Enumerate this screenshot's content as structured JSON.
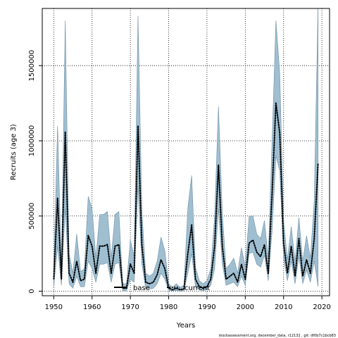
{
  "chart_data": {
    "type": "line",
    "xlabel": "Years",
    "ylabel": "Recruits (age 3)",
    "xlim": [
      1947,
      2022
    ],
    "ylim": [
      -30000,
      1880000
    ],
    "xticks": [
      1950,
      1960,
      1970,
      1980,
      1990,
      2000,
      2010,
      2020
    ],
    "xtick_labels": [
      "1950",
      "1960",
      "1970",
      "1980",
      "1990",
      "2000",
      "2010",
      "2020"
    ],
    "yticks": [
      0,
      500000,
      1000000,
      1500000
    ],
    "ytick_labels": [
      "0",
      "500000",
      "1000000",
      "1500000"
    ],
    "grid": true,
    "legend_position": "bottom-center",
    "legend": [
      {
        "label": "base",
        "style": "solid",
        "color": "#000000"
      },
      {
        "label": "current",
        "style": "dotted",
        "color": "#000000"
      }
    ],
    "band_color": "#9fbfd1",
    "band_edge_color": "#6f8fa5",
    "x": [
      1950,
      1951,
      1952,
      1953,
      1954,
      1955,
      1956,
      1957,
      1958,
      1959,
      1960,
      1961,
      1962,
      1963,
      1964,
      1965,
      1966,
      1967,
      1968,
      1969,
      1970,
      1971,
      1972,
      1973,
      1974,
      1975,
      1976,
      1977,
      1978,
      1979,
      1980,
      1981,
      1982,
      1983,
      1984,
      1985,
      1986,
      1987,
      1988,
      1989,
      1990,
      1991,
      1992,
      1993,
      1994,
      1995,
      1996,
      1997,
      1998,
      1999,
      2000,
      2001,
      2002,
      2003,
      2004,
      2005,
      2006,
      2007,
      2008,
      2009,
      2010,
      2011,
      2012,
      2013,
      2014,
      2015,
      2016,
      2017,
      2018,
      2019
    ],
    "series": [
      {
        "name": "base",
        "values": [
          80000,
          620000,
          80000,
          1060000,
          120000,
          60000,
          200000,
          70000,
          80000,
          370000,
          300000,
          120000,
          300000,
          300000,
          310000,
          120000,
          300000,
          310000,
          20000,
          20000,
          180000,
          120000,
          1100000,
          310000,
          60000,
          50000,
          60000,
          110000,
          210000,
          150000,
          20000,
          10000,
          20000,
          10000,
          15000,
          250000,
          440000,
          80000,
          30000,
          20000,
          30000,
          80000,
          300000,
          840000,
          300000,
          80000,
          100000,
          120000,
          60000,
          180000,
          80000,
          320000,
          340000,
          260000,
          230000,
          310000,
          120000,
          650000,
          1250000,
          1050000,
          320000,
          120000,
          300000,
          100000,
          350000,
          100000,
          210000,
          120000,
          350000,
          850000
        ]
      },
      {
        "name": "current",
        "values": [
          80000,
          620000,
          80000,
          1060000,
          120000,
          60000,
          200000,
          70000,
          80000,
          370000,
          300000,
          120000,
          300000,
          300000,
          310000,
          120000,
          300000,
          310000,
          20000,
          20000,
          180000,
          120000,
          1100000,
          310000,
          60000,
          50000,
          60000,
          110000,
          210000,
          150000,
          20000,
          10000,
          20000,
          10000,
          15000,
          250000,
          440000,
          80000,
          30000,
          20000,
          30000,
          80000,
          300000,
          840000,
          300000,
          80000,
          100000,
          120000,
          60000,
          180000,
          80000,
          320000,
          340000,
          260000,
          230000,
          310000,
          120000,
          650000,
          1250000,
          1050000,
          320000,
          120000,
          300000,
          100000,
          350000,
          100000,
          210000,
          120000,
          350000,
          850000
        ]
      }
    ],
    "band_lower": [
      30000,
      300000,
      40000,
      550000,
      50000,
      20000,
      100000,
      30000,
      30000,
      200000,
      150000,
      60000,
      180000,
      180000,
      190000,
      60000,
      180000,
      190000,
      5000,
      5000,
      80000,
      60000,
      700000,
      180000,
      20000,
      15000,
      20000,
      50000,
      120000,
      80000,
      5000,
      2000,
      5000,
      2000,
      3000,
      120000,
      250000,
      30000,
      10000,
      5000,
      10000,
      40000,
      150000,
      550000,
      180000,
      40000,
      50000,
      60000,
      30000,
      100000,
      40000,
      250000,
      260000,
      180000,
      160000,
      240000,
      70000,
      400000,
      900000,
      800000,
      220000,
      70000,
      200000,
      50000,
      230000,
      50000,
      140000,
      60000,
      200000,
      30000
    ],
    "band_upper": [
      150000,
      1100000,
      150000,
      1800000,
      250000,
      120000,
      380000,
      130000,
      150000,
      630000,
      550000,
      220000,
      510000,
      510000,
      530000,
      220000,
      510000,
      530000,
      50000,
      50000,
      340000,
      230000,
      1830000,
      540000,
      120000,
      100000,
      120000,
      200000,
      360000,
      270000,
      50000,
      25000,
      50000,
      25000,
      40000,
      550000,
      770000,
      160000,
      70000,
      50000,
      70000,
      150000,
      500000,
      1230000,
      520000,
      150000,
      180000,
      220000,
      120000,
      290000,
      160000,
      500000,
      500000,
      380000,
      350000,
      470000,
      220000,
      1000000,
      1800000,
      1450000,
      470000,
      210000,
      430000,
      200000,
      490000,
      200000,
      370000,
      220000,
      600000,
      1900000
    ]
  },
  "footer": "stockassessment.org, december_data, r12132 , git: df0b7c1bcb83"
}
